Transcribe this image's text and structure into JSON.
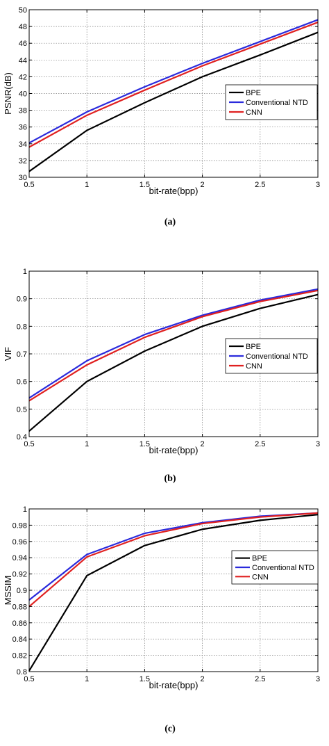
{
  "chart_data": [
    {
      "type": "line",
      "caption": "(a)",
      "xlabel": "bit-rate(bpp)",
      "ylabel": "PSNR(dB)",
      "xlim": [
        0.5,
        3
      ],
      "ylim": [
        30,
        50
      ],
      "xticks": [
        "0.5",
        "1",
        "1.5",
        "2",
        "2.5",
        "3"
      ],
      "yticks": [
        "30",
        "32",
        "34",
        "36",
        "38",
        "40",
        "42",
        "44",
        "46",
        "48",
        "50"
      ],
      "grid": true,
      "legend_position": "center-right",
      "x": [
        0.5,
        1,
        1.5,
        2,
        2.5,
        3
      ],
      "series": [
        {
          "name": "BPE",
          "color": "#000000",
          "values": [
            30.7,
            35.6,
            38.9,
            42.0,
            44.6,
            47.3
          ]
        },
        {
          "name": "Conventional NTD",
          "color": "#2a2adc",
          "values": [
            34.1,
            37.8,
            40.8,
            43.6,
            46.2,
            48.8
          ]
        },
        {
          "name": "CNN",
          "color": "#e02020",
          "values": [
            33.6,
            37.4,
            40.4,
            43.3,
            45.9,
            48.5
          ]
        }
      ]
    },
    {
      "type": "line",
      "caption": "(b)",
      "xlabel": "bit-rate(bpp)",
      "ylabel": "VIF",
      "xlim": [
        0.5,
        3
      ],
      "ylim": [
        0.4,
        1
      ],
      "xticks": [
        "0.5",
        "1",
        "1.5",
        "2",
        "2.5",
        "3"
      ],
      "yticks": [
        "0.4",
        "0.5",
        "0.6",
        "0.7",
        "0.8",
        "0.9",
        "1"
      ],
      "grid": true,
      "legend_position": "center-right",
      "x": [
        0.5,
        1,
        1.5,
        2,
        2.5,
        3
      ],
      "series": [
        {
          "name": "BPE",
          "color": "#000000",
          "values": [
            0.42,
            0.6,
            0.71,
            0.8,
            0.865,
            0.915
          ]
        },
        {
          "name": "Conventional NTD",
          "color": "#2a2adc",
          "values": [
            0.54,
            0.675,
            0.77,
            0.84,
            0.895,
            0.935
          ]
        },
        {
          "name": "CNN",
          "color": "#e02020",
          "values": [
            0.53,
            0.66,
            0.76,
            0.835,
            0.89,
            0.93
          ]
        }
      ]
    },
    {
      "type": "line",
      "caption": "(c)",
      "xlabel": "bit-rate(bpp)",
      "ylabel": "MSSIM",
      "xlim": [
        0.5,
        3
      ],
      "ylim": [
        0.8,
        1
      ],
      "xticks": [
        "0.5",
        "1",
        "1.5",
        "2",
        "2.5",
        "3"
      ],
      "yticks": [
        "0.8",
        "0.82",
        "0.84",
        "0.86",
        "0.88",
        "0.9",
        "0.92",
        "0.94",
        "0.96",
        "0.98",
        "1"
      ],
      "grid": true,
      "legend_position": "center-right",
      "x": [
        0.5,
        1,
        1.5,
        2,
        2.5,
        3
      ],
      "series": [
        {
          "name": "BPE",
          "color": "#000000",
          "values": [
            0.801,
            0.918,
            0.955,
            0.975,
            0.986,
            0.993
          ]
        },
        {
          "name": "Conventional NTD",
          "color": "#2a2adc",
          "values": [
            0.888,
            0.944,
            0.97,
            0.983,
            0.991,
            0.995
          ]
        },
        {
          "name": "CNN",
          "color": "#e02020",
          "values": [
            0.88,
            0.941,
            0.967,
            0.982,
            0.99,
            0.995
          ]
        }
      ]
    }
  ]
}
